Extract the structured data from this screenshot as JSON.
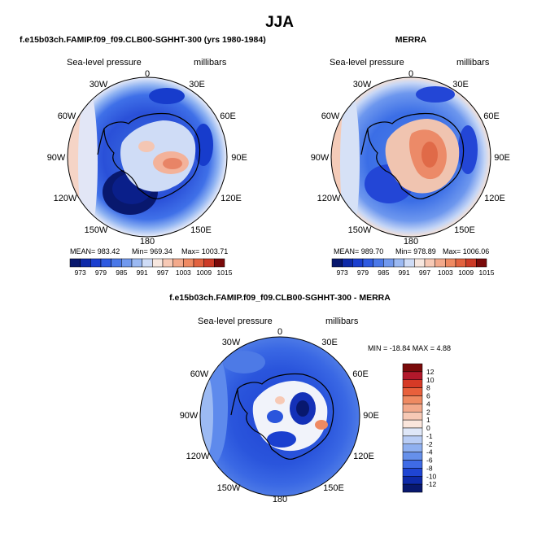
{
  "page_title": "JJA",
  "colors": {
    "neg_strong": "#08186e",
    "neg": "#1a3fcf",
    "neg_mid": "#3f6be6",
    "neg_light": "#9bb9f2",
    "neutral": "#f4f4f4",
    "pos_light": "#f7c9b5",
    "pos": "#ef8a62",
    "pos_strong": "#b2182b",
    "coast": "#000000"
  },
  "chart_data": [
    {
      "type": "heatmap",
      "projection": "south-polar-stereographic",
      "title": "f.e15b03ch.FAMIP.f09_f09.CLB00-SGHHT-300 (yrs 1980-1984)",
      "variable_label": "Sea-level pressure",
      "units_label": "millibars",
      "lon_labels": [
        "0",
        "30E",
        "60E",
        "90E",
        "120E",
        "150E",
        "180",
        "150W",
        "120W",
        "90W",
        "60W",
        "30W"
      ],
      "stats": {
        "mean": "MEAN= 983.42",
        "min": "Min= 969.34",
        "max": "Max= 1003.71"
      },
      "stats_values": {
        "mean": 983.42,
        "min": 969.34,
        "max": 1003.71
      },
      "colorbar": {
        "orientation": "horizontal",
        "levels": [
          "973",
          "979",
          "985",
          "991",
          "997",
          "1003",
          "1009",
          "1015"
        ]
      }
    },
    {
      "type": "heatmap",
      "projection": "south-polar-stereographic",
      "title": "MERRA",
      "variable_label": "Sea-level pressure",
      "units_label": "millibars",
      "lon_labels": [
        "0",
        "30E",
        "60E",
        "90E",
        "120E",
        "150E",
        "180",
        "150W",
        "120W",
        "90W",
        "60W",
        "30W"
      ],
      "stats": {
        "mean": "MEAN= 989.70",
        "min": "Min= 978.89",
        "max": "Max= 1006.06"
      },
      "stats_values": {
        "mean": 989.7,
        "min": 978.89,
        "max": 1006.06
      },
      "colorbar": {
        "orientation": "horizontal",
        "levels": [
          "973",
          "979",
          "985",
          "991",
          "997",
          "1003",
          "1009",
          "1015"
        ]
      }
    },
    {
      "type": "heatmap",
      "projection": "south-polar-stereographic",
      "title": "f.e15b03ch.FAMIP.f09_f09.CLB00-SGHHT-300 - MERRA",
      "variable_label": "Sea-level pressure",
      "units_label": "millibars",
      "lon_labels": [
        "0",
        "30E",
        "60E",
        "90E",
        "120E",
        "150E",
        "180",
        "150W",
        "120W",
        "90W",
        "60W",
        "30W"
      ],
      "stats": {
        "minmax": "MIN = -18.84  MAX =    4.88"
      },
      "stats_values": {
        "min": -18.84,
        "max": 4.88
      },
      "colorbar": {
        "orientation": "vertical",
        "levels": [
          "12",
          "10",
          "8",
          "6",
          "4",
          "2",
          "1",
          "0",
          "-1",
          "-2",
          "-4",
          "-6",
          "-8",
          "-10",
          "-12"
        ]
      }
    }
  ]
}
